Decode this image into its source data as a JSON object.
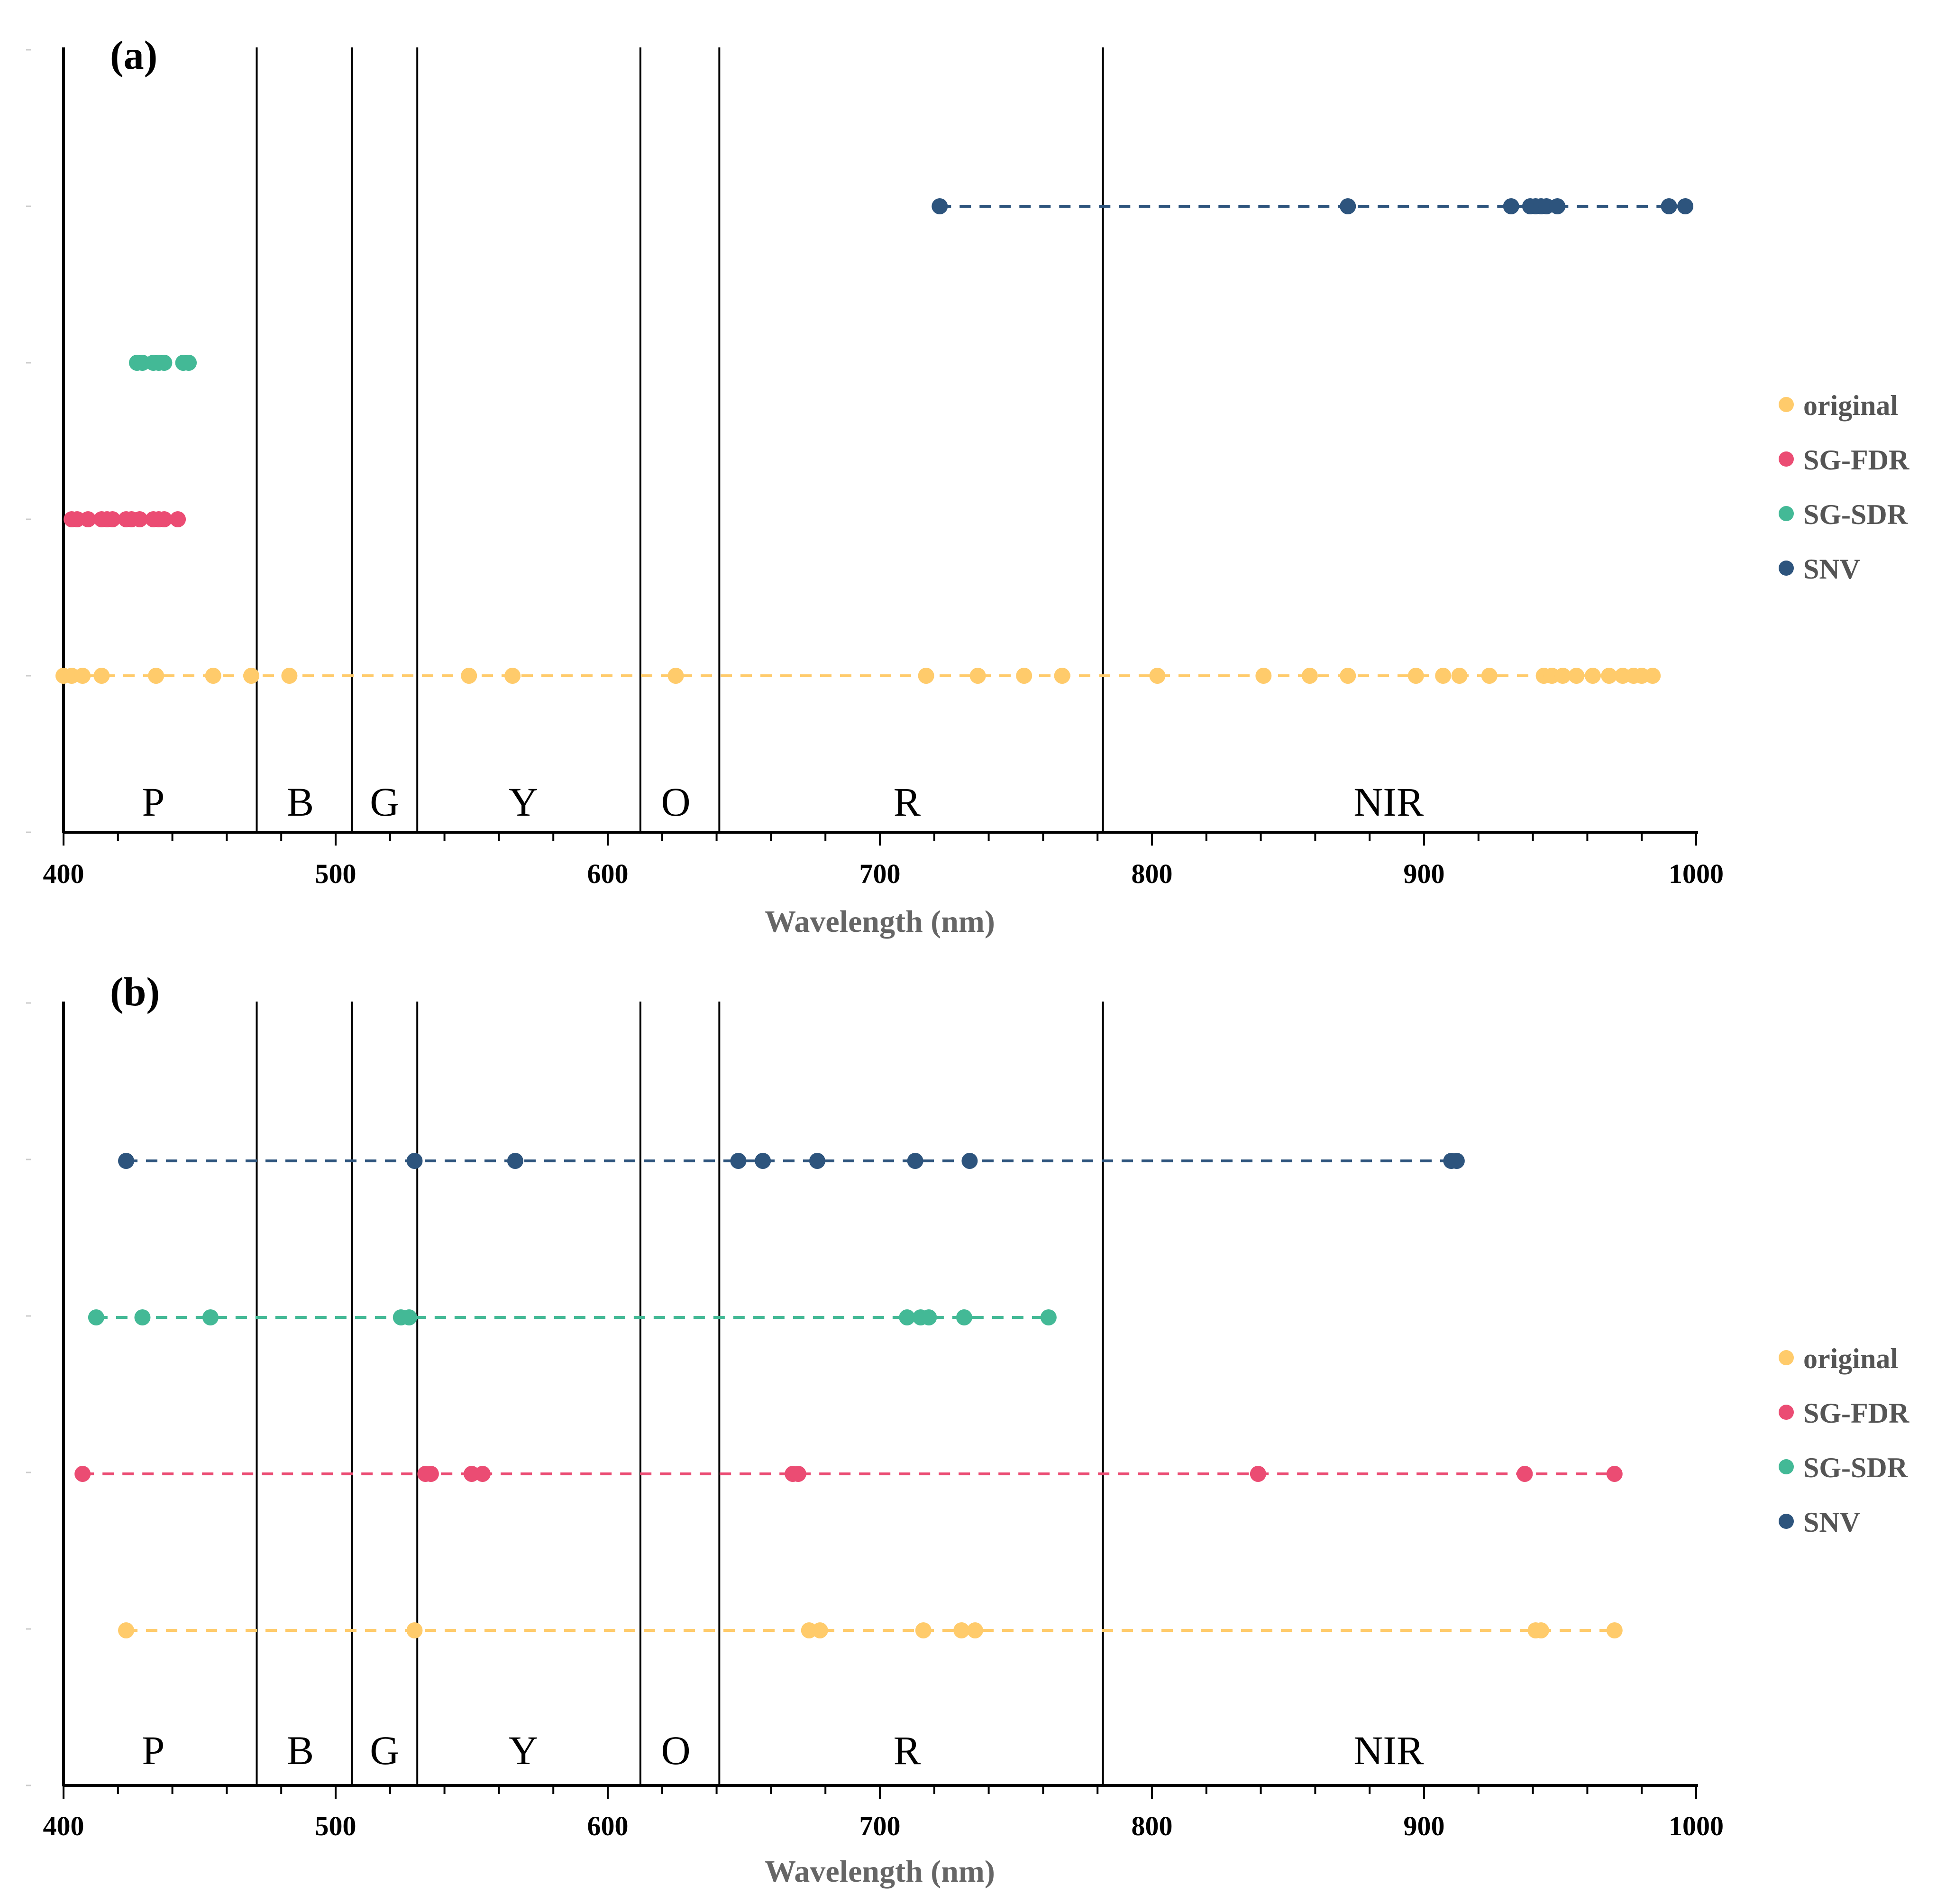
{
  "colors": {
    "original": "#FFCB6B",
    "SG-FDR": "#EB4C73",
    "SG-SDR": "#43B996",
    "SNV": "#2D547D",
    "axis": "#000000",
    "xlabel": "#666666"
  },
  "chart_data": [
    {
      "type": "scatter",
      "panel_label": "(a)",
      "xlabel": "Wavelength (nm)",
      "xlim": [
        400,
        1000
      ],
      "x_ticks": [
        400,
        500,
        600,
        700,
        800,
        900,
        1000
      ],
      "x_tick_labels": [
        "400",
        "500",
        "600",
        "700",
        "800",
        "900",
        "1000"
      ],
      "region_boundaries": [
        471,
        506,
        530,
        612,
        641,
        782
      ],
      "regions": [
        {
          "label": "P",
          "x": 433
        },
        {
          "label": "B",
          "x": 487
        },
        {
          "label": "G",
          "x": 518
        },
        {
          "label": "Y",
          "x": 569
        },
        {
          "label": "O",
          "x": 625
        },
        {
          "label": "R",
          "x": 710
        },
        {
          "label": "NIR",
          "x": 887
        }
      ],
      "legend": [
        "original",
        "SG-FDR",
        "SG-SDR",
        "SNV"
      ],
      "series": [
        {
          "name": "original",
          "row": 1,
          "line": true,
          "x": [
            400,
            403,
            407,
            414,
            434,
            455,
            469,
            483,
            549,
            565,
            625,
            717,
            736,
            753,
            767,
            802,
            841,
            858,
            872,
            897,
            907,
            913,
            924,
            944,
            947,
            951,
            956,
            962,
            968,
            973,
            977,
            980,
            984
          ]
        },
        {
          "name": "SG-FDR",
          "row": 2,
          "line": false,
          "x": [
            403,
            405,
            409,
            414,
            416,
            418,
            423,
            425,
            428,
            433,
            435,
            437,
            442
          ]
        },
        {
          "name": "SG-SDR",
          "row": 3,
          "line": false,
          "x": [
            427,
            429,
            433,
            435,
            437,
            444,
            446
          ]
        },
        {
          "name": "SNV",
          "row": 4,
          "line": true,
          "x": [
            722,
            872,
            932,
            939,
            941,
            943,
            945,
            949,
            990,
            996
          ]
        }
      ]
    },
    {
      "type": "scatter",
      "panel_label": "(b)",
      "xlabel": "Wavelength (nm)",
      "xlim": [
        400,
        1000
      ],
      "x_ticks": [
        400,
        500,
        600,
        700,
        800,
        900,
        1000
      ],
      "x_tick_labels": [
        "400",
        "500",
        "600",
        "700",
        "800",
        "900",
        "1000"
      ],
      "region_boundaries": [
        471,
        506,
        530,
        612,
        641,
        782
      ],
      "regions": [
        {
          "label": "P",
          "x": 433
        },
        {
          "label": "B",
          "x": 487
        },
        {
          "label": "G",
          "x": 518
        },
        {
          "label": "Y",
          "x": 569
        },
        {
          "label": "O",
          "x": 625
        },
        {
          "label": "R",
          "x": 710
        },
        {
          "label": "NIR",
          "x": 887
        }
      ],
      "legend": [
        "original",
        "SG-FDR",
        "SG-SDR",
        "SNV"
      ],
      "series": [
        {
          "name": "original",
          "row": 1,
          "line": true,
          "x": [
            423,
            529,
            674,
            678,
            716,
            730,
            735,
            941,
            943,
            970
          ]
        },
        {
          "name": "SG-FDR",
          "row": 2,
          "line": true,
          "x": [
            407,
            533,
            535,
            550,
            554,
            668,
            670,
            839,
            937,
            970
          ]
        },
        {
          "name": "SG-SDR",
          "row": 3,
          "line": true,
          "x": [
            412,
            429,
            454,
            524,
            527,
            710,
            715,
            718,
            731,
            762
          ]
        },
        {
          "name": "SNV",
          "row": 4,
          "line": true,
          "x": [
            423,
            529,
            566,
            648,
            657,
            677,
            713,
            733,
            910,
            912
          ]
        }
      ]
    }
  ]
}
